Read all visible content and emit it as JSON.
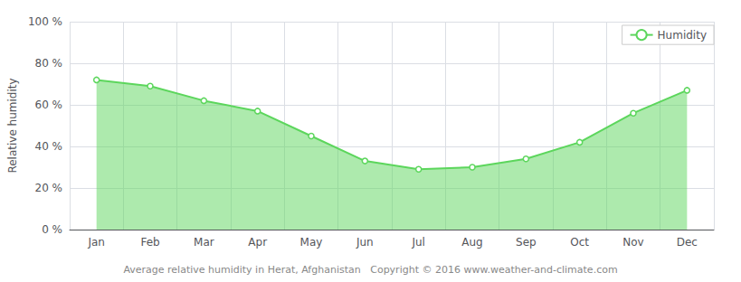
{
  "chart_data": {
    "type": "line",
    "categories": [
      "Jan",
      "Feb",
      "Mar",
      "Apr",
      "May",
      "Jun",
      "Jul",
      "Aug",
      "Sep",
      "Oct",
      "Nov",
      "Dec"
    ],
    "series": [
      {
        "name": "Humidity",
        "color": "#5cd65c",
        "marker": "circle",
        "values": [
          72,
          69,
          62,
          57,
          45,
          33,
          29,
          30,
          34,
          42,
          56,
          67
        ]
      }
    ],
    "ylabel": "Relative humidity",
    "ylim": [
      0,
      100
    ],
    "yticks": [
      {
        "value": 0,
        "label": "0 %"
      },
      {
        "value": 20,
        "label": "20 %"
      },
      {
        "value": 40,
        "label": "40 %"
      },
      {
        "value": 60,
        "label": "60 %"
      },
      {
        "value": 80,
        "label": "80 %"
      },
      {
        "value": 100,
        "label": "100 %"
      }
    ],
    "grid": true,
    "legend": "upper right",
    "annotations": [
      "Average relative humidity in Herat, Afghanistan   Copyright © 2016 www.weather-and-climate.com"
    ]
  }
}
